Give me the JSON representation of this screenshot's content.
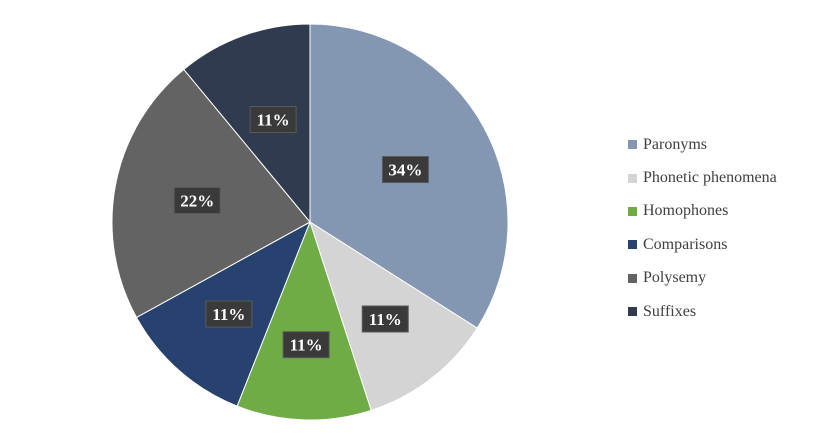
{
  "chart_data": {
    "type": "pie",
    "title": "",
    "categories": [
      "Paronyms",
      "Phonetic phenomena",
      "Homophones",
      "Comparisons",
      "Polysemy",
      "Suffixes"
    ],
    "values": [
      34,
      11,
      11,
      11,
      22,
      11
    ],
    "data_labels": [
      "34%",
      "11%",
      "11%",
      "11%",
      "22%",
      "11%"
    ],
    "colors": [
      "#8397b3",
      "#d4d4d4",
      "#6fac46",
      "#27426f",
      "#636363",
      "#313b50"
    ],
    "start_angle_deg": 0,
    "direction": "clockwise",
    "legend_position": "right"
  }
}
